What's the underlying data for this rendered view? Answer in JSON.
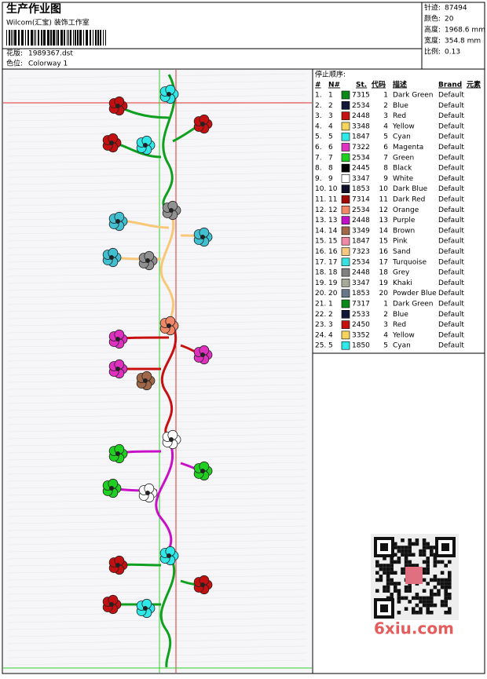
{
  "header": {
    "title": "生产作业图",
    "subtitle": "Wilcom(汇宝) 装饰工作室",
    "design_label": "花版:",
    "design_value": "1989367.dst",
    "colorway_label": "色位:",
    "colorway_value": "Colorway 1"
  },
  "info": [
    {
      "label": "针迹:",
      "value": "87494"
    },
    {
      "label": "颜色:",
      "value": "20"
    },
    {
      "label": "高度:",
      "value": "1968.6 mm"
    },
    {
      "label": "宽度:",
      "value": "354.8 mm"
    },
    {
      "label": "比例:",
      "value": "0.13"
    }
  ],
  "table": {
    "title": "停止顺序:",
    "columns": [
      "#",
      "N#",
      "St.",
      "代码",
      "描述",
      "Brand",
      "元素"
    ],
    "rows": [
      [
        "1.",
        "1",
        "#0a8a1a",
        "7315",
        "1",
        "Dark Green",
        "Default"
      ],
      [
        "2.",
        "2",
        "#141838",
        "2534",
        "2",
        "Blue",
        "Default"
      ],
      [
        "3.",
        "3",
        "#c41010",
        "2448",
        "3",
        "Red",
        "Default"
      ],
      [
        "4.",
        "4",
        "#f4d45c",
        "3348",
        "4",
        "Yellow",
        "Default"
      ],
      [
        "5.",
        "5",
        "#30e8e8",
        "1847",
        "5",
        "Cyan",
        "Default"
      ],
      [
        "6.",
        "6",
        "#e030c0",
        "7322",
        "6",
        "Magenta",
        "Default"
      ],
      [
        "7.",
        "7",
        "#20d020",
        "2534",
        "7",
        "Green",
        "Default"
      ],
      [
        "8.",
        "8",
        "#000000",
        "2445",
        "8",
        "Black",
        "Default"
      ],
      [
        "9.",
        "9",
        "#ffffff",
        "3347",
        "9",
        "White",
        "Default"
      ],
      [
        "10.",
        "10",
        "#101028",
        "1853",
        "10",
        "Dark Blue",
        "Default"
      ],
      [
        "11.",
        "11",
        "#a00808",
        "7314",
        "11",
        "Dark Red",
        "Default"
      ],
      [
        "12.",
        "12",
        "#f08868",
        "2534",
        "12",
        "Orange",
        "Default"
      ],
      [
        "13.",
        "13",
        "#c010c8",
        "2448",
        "13",
        "Purple",
        "Default"
      ],
      [
        "14.",
        "14",
        "#a06848",
        "3349",
        "14",
        "Brown",
        "Default"
      ],
      [
        "15.",
        "15",
        "#f088a8",
        "1847",
        "15",
        "Pink",
        "Default"
      ],
      [
        "16.",
        "16",
        "#f8c880",
        "7323",
        "16",
        "Sand",
        "Default"
      ],
      [
        "17.",
        "17",
        "#38e0e0",
        "2534",
        "17",
        "Turquoise",
        "Default"
      ],
      [
        "18.",
        "18",
        "#808080",
        "2448",
        "18",
        "Grey",
        "Default"
      ],
      [
        "19.",
        "19",
        "#a8a898",
        "3347",
        "19",
        "Khaki",
        "Default"
      ],
      [
        "20.",
        "20",
        "#687888",
        "1853",
        "20",
        "Powder Blue",
        "Default"
      ],
      [
        "21.",
        "1",
        "#0a8a1a",
        "7317",
        "1",
        "Dark Green",
        "Default"
      ],
      [
        "22.",
        "2",
        "#141838",
        "2533",
        "2",
        "Blue",
        "Default"
      ],
      [
        "23.",
        "3",
        "#c41010",
        "2450",
        "3",
        "Red",
        "Default"
      ],
      [
        "24.",
        "4",
        "#f4d45c",
        "3352",
        "4",
        "Yellow",
        "Default"
      ],
      [
        "25.",
        "5",
        "#30e8e8",
        "1850",
        "5",
        "Cyan",
        "Default"
      ]
    ]
  },
  "watermark": "6xiu.com"
}
